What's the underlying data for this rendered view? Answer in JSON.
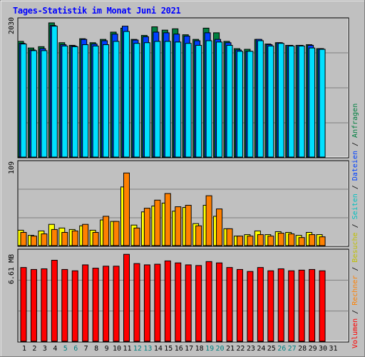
{
  "title": "Tages-Statistik im Monat Juni 2021",
  "colors": {
    "hits": "#008040",
    "files": "#0040ff",
    "pages": "#00e0ff",
    "visits": "#ffff00",
    "sites": "#ff8000",
    "kbytes": "#ff0000",
    "weekday_label": "#000000",
    "weekend_label": "#008080",
    "title": "#0000ff",
    "background": "#c0c0c0"
  },
  "legend": [
    {
      "text": "Volumen",
      "color": "#ff0000"
    },
    {
      "text": " / ",
      "color": "#000000"
    },
    {
      "text": "Rechner",
      "color": "#ff8000"
    },
    {
      "text": " / ",
      "color": "#000000"
    },
    {
      "text": "Besuche",
      "color": "#c0c000"
    },
    {
      "text": " / ",
      "color": "#000000"
    },
    {
      "text": "Seiten",
      "color": "#00c0c0"
    },
    {
      "text": " / ",
      "color": "#000000"
    },
    {
      "text": "Dateien",
      "color": "#0040ff"
    },
    {
      "text": " / ",
      "color": "#000000"
    },
    {
      "text": "Anfragen",
      "color": "#008040"
    }
  ],
  "chart_data": [
    {
      "type": "bar",
      "categories": [
        "1",
        "2",
        "3",
        "4",
        "5",
        "6",
        "7",
        "8",
        "9",
        "10",
        "11",
        "12",
        "13",
        "14",
        "15",
        "16",
        "17",
        "18",
        "19",
        "20",
        "21",
        "22",
        "23",
        "24",
        "25",
        "26",
        "27",
        "28",
        "29",
        "30",
        "31"
      ],
      "weekend": [
        "5",
        "6",
        "12",
        "13",
        "19",
        "20",
        "26",
        "27"
      ],
      "ymax_label": "2030",
      "ylim": [
        0,
        2030
      ],
      "series": [
        {
          "name": "Anfragen",
          "values": [
            1750,
            1650,
            1670,
            2030,
            1730,
            1690,
            1790,
            1730,
            1780,
            1890,
            1950,
            1780,
            1840,
            1970,
            1920,
            1940,
            1850,
            1780,
            1950,
            1880,
            1750,
            1640,
            1630,
            1780,
            1710,
            1730,
            1690,
            1690,
            1700,
            1640,
            null
          ]
        },
        {
          "name": "Dateien",
          "values": [
            1720,
            1620,
            1640,
            1990,
            1700,
            1680,
            1780,
            1710,
            1760,
            1860,
            1980,
            1770,
            1820,
            1890,
            1880,
            1860,
            1830,
            1760,
            1880,
            1780,
            1730,
            1620,
            1600,
            1780,
            1700,
            1730,
            1690,
            1690,
            1690,
            1640,
            null
          ]
        },
        {
          "name": "Seiten",
          "values": [
            1710,
            1610,
            1610,
            1980,
            1680,
            1670,
            1700,
            1680,
            1700,
            1750,
            1900,
            1720,
            1730,
            1750,
            1750,
            1740,
            1720,
            1690,
            1760,
            1740,
            1690,
            1600,
            1600,
            1760,
            1680,
            1720,
            1680,
            1680,
            1650,
            1630,
            null
          ]
        }
      ]
    },
    {
      "type": "bar",
      "categories": [
        "1",
        "2",
        "3",
        "4",
        "5",
        "6",
        "7",
        "8",
        "9",
        "10",
        "11",
        "12",
        "13",
        "14",
        "15",
        "16",
        "17",
        "18",
        "19",
        "20",
        "21",
        "22",
        "23",
        "24",
        "25",
        "26",
        "27",
        "28",
        "29",
        "30",
        "31"
      ],
      "ymax_label": "109",
      "ylim": [
        0,
        109
      ],
      "series": [
        {
          "name": "Besuche",
          "values": [
            21,
            14,
            20,
            29,
            24,
            22,
            27,
            21,
            35,
            33,
            80,
            28,
            46,
            54,
            58,
            47,
            52,
            30,
            55,
            40,
            23,
            13,
            15,
            20,
            15,
            19,
            18,
            14,
            18,
            15,
            null
          ]
        },
        {
          "name": "Rechner",
          "values": [
            18,
            13,
            16,
            22,
            18,
            20,
            29,
            18,
            40,
            33,
            99,
            24,
            51,
            62,
            71,
            53,
            55,
            27,
            68,
            50,
            23,
            13,
            13,
            15,
            13,
            17,
            16,
            11,
            15,
            12,
            null
          ]
        }
      ]
    },
    {
      "type": "bar",
      "categories": [
        "1",
        "2",
        "3",
        "4",
        "5",
        "6",
        "7",
        "8",
        "9",
        "10",
        "11",
        "12",
        "13",
        "14",
        "15",
        "16",
        "17",
        "18",
        "19",
        "20",
        "21",
        "22",
        "23",
        "24",
        "25",
        "26",
        "27",
        "28",
        "29",
        "30",
        "31"
      ],
      "ymax_label": "6.61 MB",
      "ylim": [
        0,
        6.61
      ],
      "series": [
        {
          "name": "Volumen",
          "values": [
            5.6,
            5.45,
            5.5,
            6.15,
            5.45,
            5.35,
            5.8,
            5.55,
            5.7,
            5.7,
            6.6,
            5.9,
            5.8,
            5.85,
            6.1,
            5.95,
            5.8,
            5.75,
            6.05,
            5.95,
            5.6,
            5.45,
            5.3,
            5.6,
            5.35,
            5.5,
            5.35,
            5.4,
            5.45,
            5.35,
            null
          ]
        }
      ]
    }
  ]
}
